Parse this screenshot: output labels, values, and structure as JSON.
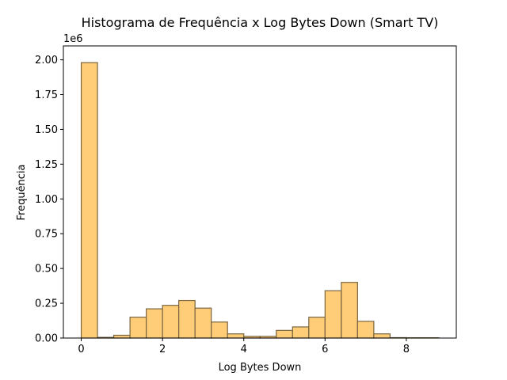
{
  "chart_data": {
    "type": "bar",
    "title": "Histograma de Frequência x Log Bytes Down (Smart TV)",
    "xlabel": "Log Bytes Down",
    "ylabel": "Frequência",
    "offset_label": "1e6",
    "xlim": [
      -0.44,
      9.23
    ],
    "ylim": [
      0,
      2.1
    ],
    "bin_width": 0.4,
    "bin_start": 0.0,
    "values": [
      1.98,
      0.005,
      0.02,
      0.15,
      0.21,
      0.235,
      0.27,
      0.215,
      0.115,
      0.03,
      0.012,
      0.012,
      0.055,
      0.08,
      0.15,
      0.34,
      0.4,
      0.12,
      0.03,
      0.003,
      0.002,
      0.002
    ],
    "xticks": [
      0,
      2,
      4,
      6,
      8
    ],
    "xtick_labels": [
      "0",
      "2",
      "4",
      "6",
      "8"
    ],
    "yticks": [
      0,
      0.25,
      0.5,
      0.75,
      1.0,
      1.25,
      1.5,
      1.75,
      2.0
    ],
    "ytick_labels": [
      "0.00",
      "0.25",
      "0.50",
      "0.75",
      "1.00",
      "1.25",
      "1.50",
      "1.75",
      "2.00"
    ],
    "grid": false,
    "colors": {
      "bar_fill": "#ffcc77",
      "bar_edge": "#7a6540"
    }
  }
}
